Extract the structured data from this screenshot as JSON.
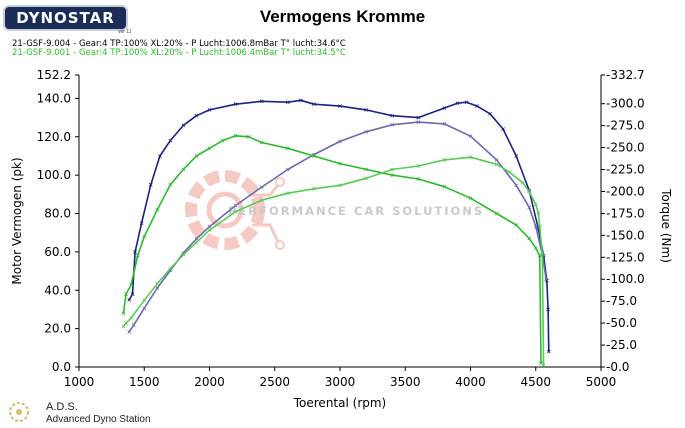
{
  "logo": {
    "text": "DYNOSTAR",
    "sub": "ver 11"
  },
  "title": "Vermogens Kromme",
  "runs": [
    {
      "label": "21-GSF-9.004 - Gear:4 TP:100% XL:20%  - P Lucht:1006.8mBar T° lucht:34.6°C",
      "color": "#000000"
    },
    {
      "label": "21-GSF-9.001 - Gear:4 TP:100% XL:20%  - P Lucht:1006.4mBar T° lucht:34.5°C",
      "color": "#2db82d"
    }
  ],
  "watermark": "PERFORMANCE CAR SOLUTIONS",
  "footer": {
    "title": "A.D.S.",
    "subtitle": "Advanced Dyno Station"
  },
  "chart_data": {
    "type": "line",
    "xlabel": "Toerental (rpm)",
    "ylabel": "Motor Vermogen (pk)",
    "y2label": "Torque (Nm)",
    "xlim": [
      1000,
      5000
    ],
    "ylim": [
      0,
      152.2
    ],
    "y2lim": [
      0,
      332.7
    ],
    "x_ticks": [
      "1000",
      "1500",
      "2000",
      "2500",
      "3000",
      "3500",
      "4000",
      "4500",
      "5000"
    ],
    "y_ticks": [
      "0.0",
      "20.0",
      "40.0",
      "60.0",
      "80.0",
      "100.0",
      "120.0",
      "140.0",
      "152.2"
    ],
    "y2_ticks": [
      "-0.0",
      "-25.0",
      "-50.0",
      "-75.0",
      "-100.0",
      "-125.0",
      "-150.0",
      "-175.0",
      "-200.0",
      "-225.0",
      "-250.0",
      "-275.0",
      "-300.0",
      "-332.7"
    ],
    "series": [
      {
        "name": "21-GSF-9.004 Vermogen",
        "axis": "left",
        "color": "#1a237e",
        "points": [
          [
            1385,
            35
          ],
          [
            1410,
            38
          ],
          [
            1430,
            60
          ],
          [
            1480,
            75
          ],
          [
            1550,
            95
          ],
          [
            1620,
            110
          ],
          [
            1700,
            118
          ],
          [
            1800,
            126
          ],
          [
            1900,
            131
          ],
          [
            2000,
            134
          ],
          [
            2200,
            137
          ],
          [
            2400,
            138.5
          ],
          [
            2600,
            138
          ],
          [
            2700,
            139
          ],
          [
            2800,
            137
          ],
          [
            3000,
            136
          ],
          [
            3200,
            134
          ],
          [
            3400,
            131
          ],
          [
            3600,
            130
          ],
          [
            3800,
            135
          ],
          [
            3900,
            137.5
          ],
          [
            3970,
            138
          ],
          [
            4050,
            136
          ],
          [
            4150,
            132
          ],
          [
            4250,
            124
          ],
          [
            4350,
            110
          ],
          [
            4450,
            92
          ],
          [
            4520,
            72
          ],
          [
            4560,
            58
          ],
          [
            4585,
            45
          ],
          [
            4595,
            30
          ],
          [
            4600,
            8
          ]
        ]
      },
      {
        "name": "21-GSF-9.004 Torque",
        "axis": "right",
        "color": "#6a6aaa",
        "points": [
          [
            1385,
            40
          ],
          [
            1420,
            48
          ],
          [
            1500,
            67
          ],
          [
            1600,
            90
          ],
          [
            1700,
            110
          ],
          [
            1800,
            130
          ],
          [
            1900,
            146
          ],
          [
            2000,
            160
          ],
          [
            2200,
            184
          ],
          [
            2400,
            205
          ],
          [
            2600,
            225
          ],
          [
            2800,
            242
          ],
          [
            3000,
            257
          ],
          [
            3200,
            268
          ],
          [
            3400,
            276
          ],
          [
            3600,
            279
          ],
          [
            3800,
            277
          ],
          [
            4000,
            263
          ],
          [
            4200,
            236
          ],
          [
            4350,
            207
          ],
          [
            4450,
            182
          ],
          [
            4500,
            160
          ],
          [
            4550,
            128
          ],
          [
            4580,
            100
          ]
        ]
      },
      {
        "name": "21-GSF-9.001 Vermogen",
        "axis": "left",
        "color": "#2db82d",
        "points": [
          [
            1340,
            28
          ],
          [
            1360,
            38
          ],
          [
            1400,
            43
          ],
          [
            1450,
            58
          ],
          [
            1500,
            68
          ],
          [
            1600,
            82
          ],
          [
            1700,
            95
          ],
          [
            1800,
            103
          ],
          [
            1900,
            110
          ],
          [
            2000,
            114
          ],
          [
            2100,
            118
          ],
          [
            2200,
            120.5
          ],
          [
            2300,
            120
          ],
          [
            2400,
            117
          ],
          [
            2600,
            114
          ],
          [
            2800,
            110
          ],
          [
            3000,
            106
          ],
          [
            3200,
            103
          ],
          [
            3400,
            100
          ],
          [
            3600,
            98
          ],
          [
            3800,
            94
          ],
          [
            4000,
            88
          ],
          [
            4200,
            80
          ],
          [
            4350,
            74
          ],
          [
            4450,
            67
          ],
          [
            4500,
            62
          ],
          [
            4530,
            58
          ],
          [
            4540,
            2
          ]
        ]
      },
      {
        "name": "21-GSF-9.001 Torque",
        "axis": "right",
        "color": "#5ac85a",
        "points": [
          [
            1340,
            46
          ],
          [
            1360,
            50
          ],
          [
            1400,
            56
          ],
          [
            1500,
            76
          ],
          [
            1600,
            95
          ],
          [
            1700,
            112
          ],
          [
            1800,
            128
          ],
          [
            1900,
            142
          ],
          [
            2000,
            156
          ],
          [
            2200,
            177
          ],
          [
            2400,
            190
          ],
          [
            2600,
            198
          ],
          [
            2800,
            203
          ],
          [
            3000,
            207
          ],
          [
            3200,
            215
          ],
          [
            3400,
            225
          ],
          [
            3600,
            229
          ],
          [
            3800,
            236
          ],
          [
            4000,
            239
          ],
          [
            4200,
            231
          ],
          [
            4300,
            222
          ],
          [
            4400,
            210
          ],
          [
            4450,
            200
          ],
          [
            4500,
            185
          ],
          [
            4520,
            175
          ],
          [
            4530,
            160
          ],
          [
            4550,
            130
          ],
          [
            4560,
            2
          ]
        ]
      }
    ]
  }
}
